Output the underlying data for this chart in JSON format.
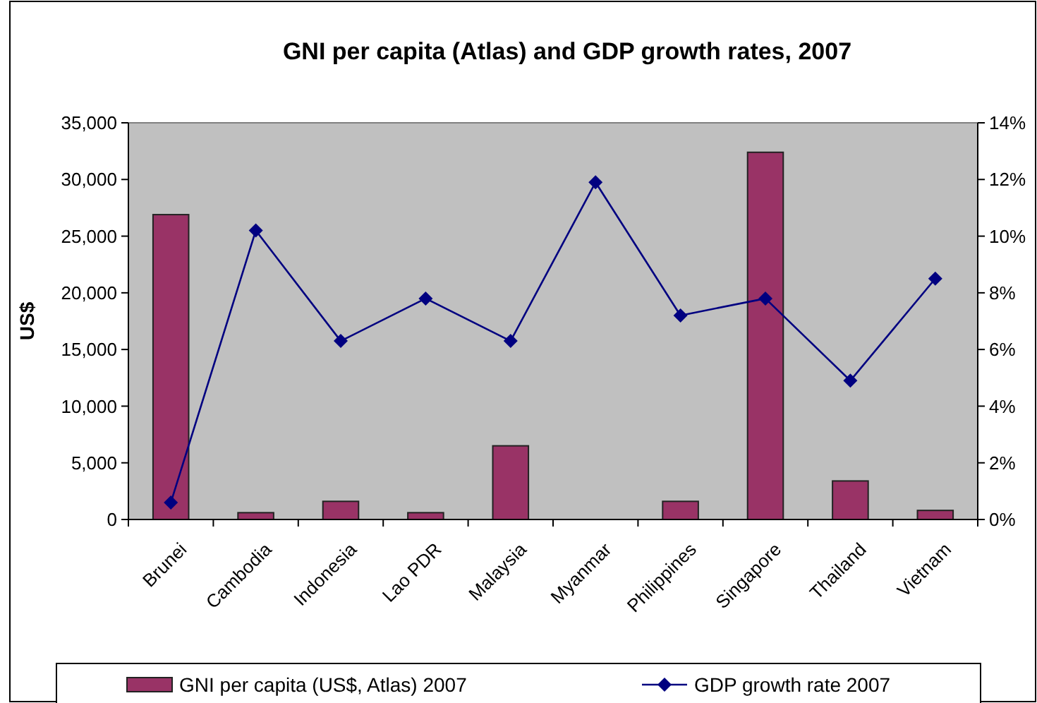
{
  "chart_data": {
    "type": "bar",
    "title": "GNI per capita (Atlas) and GDP growth rates, 2007",
    "ylabel": "US$",
    "categories": [
      "Brunei",
      "Cambodia",
      "Indonesia",
      "Lao PDR",
      "Malaysia",
      "Myanmar",
      "Philippines",
      "Singapore",
      "Thailand",
      "Vietnam"
    ],
    "series": [
      {
        "name": "GNI per capita (US$, Atlas) 2007",
        "color": "#993366",
        "values": [
          26900,
          600,
          1600,
          600,
          6500,
          null,
          1600,
          32400,
          3400,
          800
        ]
      },
      {
        "name": "GDP growth rate 2007",
        "type": "line",
        "axis": "y2",
        "color": "#000080",
        "values": [
          0.6,
          10.2,
          6.3,
          7.8,
          6.3,
          11.9,
          7.2,
          7.8,
          4.9,
          8.5
        ]
      }
    ],
    "ylim": [
      0,
      35000
    ],
    "yticks": [
      {
        "value": 0,
        "label": "0"
      },
      {
        "value": 5000,
        "label": "5,000"
      },
      {
        "value": 10000,
        "label": "10,000"
      },
      {
        "value": 15000,
        "label": "15,000"
      },
      {
        "value": 20000,
        "label": "20,000"
      },
      {
        "value": 25000,
        "label": "25,000"
      },
      {
        "value": 30000,
        "label": "30,000"
      },
      {
        "value": 35000,
        "label": "35,000"
      }
    ],
    "y2lim": [
      0,
      14
    ],
    "y2ticks": [
      {
        "value": 0,
        "label": "0%"
      },
      {
        "value": 2,
        "label": "2%"
      },
      {
        "value": 4,
        "label": "4%"
      },
      {
        "value": 6,
        "label": "6%"
      },
      {
        "value": 8,
        "label": "8%"
      },
      {
        "value": 10,
        "label": "10%"
      },
      {
        "value": 12,
        "label": "12%"
      },
      {
        "value": 14,
        "label": "14%"
      }
    ],
    "marker": "diamond",
    "grid": false,
    "legend": "bottom"
  }
}
